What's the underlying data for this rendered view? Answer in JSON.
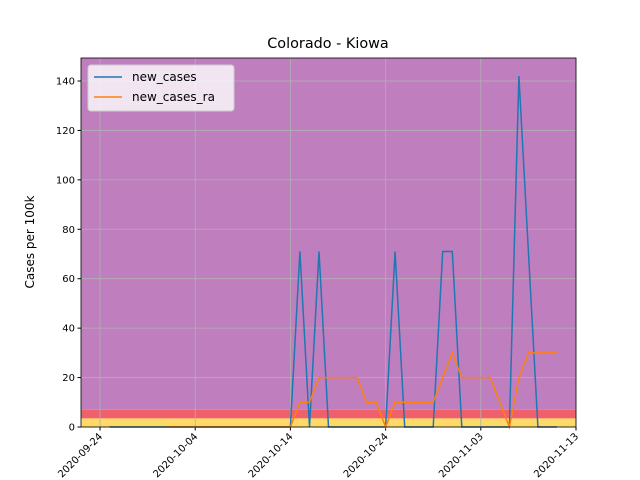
{
  "chart_data": {
    "type": "line",
    "title": "Colorado - Kiowa",
    "y_label": "Cases per 100k",
    "x": [
      "2020-09-25",
      "2020-09-26",
      "2020-09-27",
      "2020-09-28",
      "2020-09-29",
      "2020-09-30",
      "2020-10-01",
      "2020-10-02",
      "2020-10-03",
      "2020-10-04",
      "2020-10-05",
      "2020-10-06",
      "2020-10-07",
      "2020-10-08",
      "2020-10-09",
      "2020-10-10",
      "2020-10-11",
      "2020-10-12",
      "2020-10-13",
      "2020-10-14",
      "2020-10-15",
      "2020-10-16",
      "2020-10-17",
      "2020-10-18",
      "2020-10-19",
      "2020-10-20",
      "2020-10-21",
      "2020-10-22",
      "2020-10-23",
      "2020-10-24",
      "2020-10-25",
      "2020-10-26",
      "2020-10-27",
      "2020-10-28",
      "2020-10-29",
      "2020-10-30",
      "2020-10-31",
      "2020-11-01",
      "2020-11-02",
      "2020-11-03",
      "2020-11-04",
      "2020-11-05",
      "2020-11-06",
      "2020-11-07",
      "2020-11-08",
      "2020-11-09",
      "2020-11-10",
      "2020-11-11"
    ],
    "series": [
      {
        "name": "new_cases",
        "color": "#1f77b4",
        "values": [
          0,
          0,
          0,
          0,
          0,
          0,
          0,
          0,
          0,
          0,
          0,
          0,
          0,
          0,
          0,
          0,
          0,
          0,
          0,
          0,
          71,
          0,
          71,
          0,
          0,
          0,
          0,
          0,
          0,
          0,
          71,
          0,
          0,
          0,
          0,
          71,
          71,
          0,
          0,
          0,
          0,
          0,
          0,
          142,
          71,
          0,
          0,
          0
        ]
      },
      {
        "name": "new_cases_ra",
        "color": "#ff7f0e",
        "values": [
          null,
          null,
          null,
          null,
          null,
          null,
          0,
          0,
          0,
          0,
          0,
          0,
          0,
          0,
          0,
          0,
          0,
          0,
          0,
          0,
          10,
          10,
          20,
          20,
          20,
          20,
          20,
          10,
          10,
          0,
          10,
          10,
          10,
          10,
          10,
          20,
          30,
          20,
          20,
          20,
          20,
          10,
          0,
          20,
          30,
          30,
          30,
          30
        ]
      }
    ],
    "bands": [
      {
        "from": 0,
        "to": 3.5,
        "color": "#ffd966"
      },
      {
        "from": 3.5,
        "to": 7,
        "color": "#f0606a"
      },
      {
        "from": 7,
        "to": 149.3,
        "color": "#bf7fbf"
      }
    ],
    "xlim": [
      "2020-09-22",
      "2020-11-13"
    ],
    "xticks": [
      "2020-09-24",
      "2020-10-04",
      "2020-10-14",
      "2020-10-24",
      "2020-11-03",
      "2020-11-13"
    ],
    "ylim": [
      0,
      149.3
    ],
    "yticks": [
      0,
      20,
      40,
      60,
      80,
      100,
      120,
      140
    ],
    "grid": true,
    "legend": "upper left"
  }
}
